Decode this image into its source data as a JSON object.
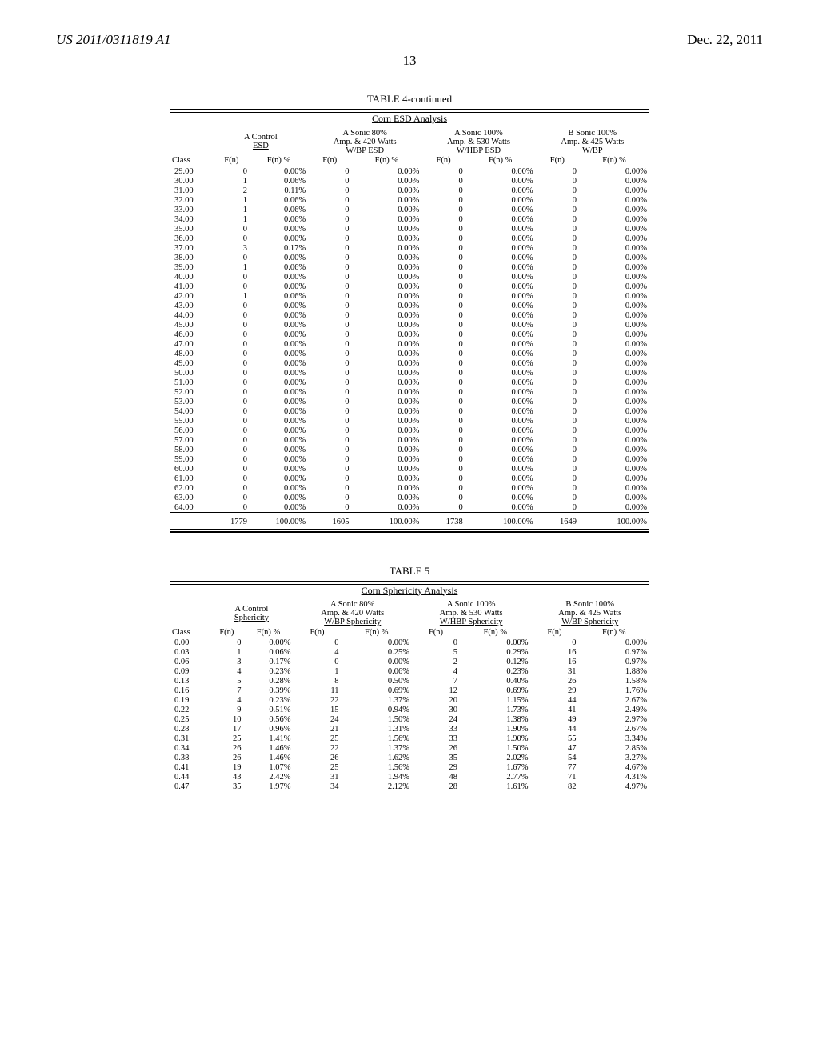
{
  "header": {
    "patent_number": "US 2011/0311819 A1",
    "date": "Dec. 22, 2011",
    "page_number": "13"
  },
  "table4": {
    "title": "TABLE 4-continued",
    "subtitle": "Corn ESD Analysis",
    "group_headers": [
      "A Control\nESD",
      "A Sonic 80%\nAmp. & 420 Watts\nW/BP ESD",
      "A Sonic 100%\nAmp. & 530 Watts\nW/HBP ESD",
      "B Sonic 100%\nAmp. & 425 Watts\nW/BP"
    ],
    "col_labels": [
      "Class",
      "F(n)",
      "F(n) %",
      "F(n)",
      "F(n) %",
      "F(n)",
      "F(n) %",
      "F(n)",
      "F(n) %"
    ],
    "rows": [
      [
        "29.00",
        "0",
        "0.00%",
        "0",
        "0.00%",
        "0",
        "0.00%",
        "0",
        "0.00%"
      ],
      [
        "30.00",
        "1",
        "0.06%",
        "0",
        "0.00%",
        "0",
        "0.00%",
        "0",
        "0.00%"
      ],
      [
        "31.00",
        "2",
        "0.11%",
        "0",
        "0.00%",
        "0",
        "0.00%",
        "0",
        "0.00%"
      ],
      [
        "32.00",
        "1",
        "0.06%",
        "0",
        "0.00%",
        "0",
        "0.00%",
        "0",
        "0.00%"
      ],
      [
        "33.00",
        "1",
        "0.06%",
        "0",
        "0.00%",
        "0",
        "0.00%",
        "0",
        "0.00%"
      ],
      [
        "34.00",
        "1",
        "0.06%",
        "0",
        "0.00%",
        "0",
        "0.00%",
        "0",
        "0.00%"
      ],
      [
        "35.00",
        "0",
        "0.00%",
        "0",
        "0.00%",
        "0",
        "0.00%",
        "0",
        "0.00%"
      ],
      [
        "36.00",
        "0",
        "0.00%",
        "0",
        "0.00%",
        "0",
        "0.00%",
        "0",
        "0.00%"
      ],
      [
        "37.00",
        "3",
        "0.17%",
        "0",
        "0.00%",
        "0",
        "0.00%",
        "0",
        "0.00%"
      ],
      [
        "38.00",
        "0",
        "0.00%",
        "0",
        "0.00%",
        "0",
        "0.00%",
        "0",
        "0.00%"
      ],
      [
        "39.00",
        "1",
        "0.06%",
        "0",
        "0.00%",
        "0",
        "0.00%",
        "0",
        "0.00%"
      ],
      [
        "40.00",
        "0",
        "0.00%",
        "0",
        "0.00%",
        "0",
        "0.00%",
        "0",
        "0.00%"
      ],
      [
        "41.00",
        "0",
        "0.00%",
        "0",
        "0.00%",
        "0",
        "0.00%",
        "0",
        "0.00%"
      ],
      [
        "42.00",
        "1",
        "0.06%",
        "0",
        "0.00%",
        "0",
        "0.00%",
        "0",
        "0.00%"
      ],
      [
        "43.00",
        "0",
        "0.00%",
        "0",
        "0.00%",
        "0",
        "0.00%",
        "0",
        "0.00%"
      ],
      [
        "44.00",
        "0",
        "0.00%",
        "0",
        "0.00%",
        "0",
        "0.00%",
        "0",
        "0.00%"
      ],
      [
        "45.00",
        "0",
        "0.00%",
        "0",
        "0.00%",
        "0",
        "0.00%",
        "0",
        "0.00%"
      ],
      [
        "46.00",
        "0",
        "0.00%",
        "0",
        "0.00%",
        "0",
        "0.00%",
        "0",
        "0.00%"
      ],
      [
        "47.00",
        "0",
        "0.00%",
        "0",
        "0.00%",
        "0",
        "0.00%",
        "0",
        "0.00%"
      ],
      [
        "48.00",
        "0",
        "0.00%",
        "0",
        "0.00%",
        "0",
        "0.00%",
        "0",
        "0.00%"
      ],
      [
        "49.00",
        "0",
        "0.00%",
        "0",
        "0.00%",
        "0",
        "0.00%",
        "0",
        "0.00%"
      ],
      [
        "50.00",
        "0",
        "0.00%",
        "0",
        "0.00%",
        "0",
        "0.00%",
        "0",
        "0.00%"
      ],
      [
        "51.00",
        "0",
        "0.00%",
        "0",
        "0.00%",
        "0",
        "0.00%",
        "0",
        "0.00%"
      ],
      [
        "52.00",
        "0",
        "0.00%",
        "0",
        "0.00%",
        "0",
        "0.00%",
        "0",
        "0.00%"
      ],
      [
        "53.00",
        "0",
        "0.00%",
        "0",
        "0.00%",
        "0",
        "0.00%",
        "0",
        "0.00%"
      ],
      [
        "54.00",
        "0",
        "0.00%",
        "0",
        "0.00%",
        "0",
        "0.00%",
        "0",
        "0.00%"
      ],
      [
        "55.00",
        "0",
        "0.00%",
        "0",
        "0.00%",
        "0",
        "0.00%",
        "0",
        "0.00%"
      ],
      [
        "56.00",
        "0",
        "0.00%",
        "0",
        "0.00%",
        "0",
        "0.00%",
        "0",
        "0.00%"
      ],
      [
        "57.00",
        "0",
        "0.00%",
        "0",
        "0.00%",
        "0",
        "0.00%",
        "0",
        "0.00%"
      ],
      [
        "58.00",
        "0",
        "0.00%",
        "0",
        "0.00%",
        "0",
        "0.00%",
        "0",
        "0.00%"
      ],
      [
        "59.00",
        "0",
        "0.00%",
        "0",
        "0.00%",
        "0",
        "0.00%",
        "0",
        "0.00%"
      ],
      [
        "60.00",
        "0",
        "0.00%",
        "0",
        "0.00%",
        "0",
        "0.00%",
        "0",
        "0.00%"
      ],
      [
        "61.00",
        "0",
        "0.00%",
        "0",
        "0.00%",
        "0",
        "0.00%",
        "0",
        "0.00%"
      ],
      [
        "62.00",
        "0",
        "0.00%",
        "0",
        "0.00%",
        "0",
        "0.00%",
        "0",
        "0.00%"
      ],
      [
        "63.00",
        "0",
        "0.00%",
        "0",
        "0.00%",
        "0",
        "0.00%",
        "0",
        "0.00%"
      ],
      [
        "64.00",
        "0",
        "0.00%",
        "0",
        "0.00%",
        "0",
        "0.00%",
        "0",
        "0.00%"
      ]
    ],
    "totals": [
      "",
      "1779",
      "100.00%",
      "1605",
      "100.00%",
      "1738",
      "100.00%",
      "1649",
      "100.00%"
    ]
  },
  "table5": {
    "title": "TABLE 5",
    "subtitle": "Corn Sphericity Analysis",
    "group_headers": [
      "A Control\nSphericity",
      "A Sonic 80%\nAmp. & 420 Watts\nW/BP Sphericity",
      "A Sonic 100%\nAmp. & 530 Watts\nW/HBP Sphericity",
      "B Sonic 100%\nAmp. & 425 Watts\nW/BP Sphericity"
    ],
    "col_labels": [
      "Class",
      "F(n)",
      "F(n) %",
      "F(n)",
      "F(n) %",
      "F(n)",
      "F(n) %",
      "F(n)",
      "F(n) %"
    ],
    "rows": [
      [
        "0.00",
        "0",
        "0.00%",
        "0",
        "0.00%",
        "0",
        "0.00%",
        "0",
        "0.00%"
      ],
      [
        "0.03",
        "1",
        "0.06%",
        "4",
        "0.25%",
        "5",
        "0.29%",
        "16",
        "0.97%"
      ],
      [
        "0.06",
        "3",
        "0.17%",
        "0",
        "0.00%",
        "2",
        "0.12%",
        "16",
        "0.97%"
      ],
      [
        "0.09",
        "4",
        "0.23%",
        "1",
        "0.06%",
        "4",
        "0.23%",
        "31",
        "1.88%"
      ],
      [
        "0.13",
        "5",
        "0.28%",
        "8",
        "0.50%",
        "7",
        "0.40%",
        "26",
        "1.58%"
      ],
      [
        "0.16",
        "7",
        "0.39%",
        "11",
        "0.69%",
        "12",
        "0.69%",
        "29",
        "1.76%"
      ],
      [
        "0.19",
        "4",
        "0.23%",
        "22",
        "1.37%",
        "20",
        "1.15%",
        "44",
        "2.67%"
      ],
      [
        "0.22",
        "9",
        "0.51%",
        "15",
        "0.94%",
        "30",
        "1.73%",
        "41",
        "2.49%"
      ],
      [
        "0.25",
        "10",
        "0.56%",
        "24",
        "1.50%",
        "24",
        "1.38%",
        "49",
        "2.97%"
      ],
      [
        "0.28",
        "17",
        "0.96%",
        "21",
        "1.31%",
        "33",
        "1.90%",
        "44",
        "2.67%"
      ],
      [
        "0.31",
        "25",
        "1.41%",
        "25",
        "1.56%",
        "33",
        "1.90%",
        "55",
        "3.34%"
      ],
      [
        "0.34",
        "26",
        "1.46%",
        "22",
        "1.37%",
        "26",
        "1.50%",
        "47",
        "2.85%"
      ],
      [
        "0.38",
        "26",
        "1.46%",
        "26",
        "1.62%",
        "35",
        "2.02%",
        "54",
        "3.27%"
      ],
      [
        "0.41",
        "19",
        "1.07%",
        "25",
        "1.56%",
        "29",
        "1.67%",
        "77",
        "4.67%"
      ],
      [
        "0.44",
        "43",
        "2.42%",
        "31",
        "1.94%",
        "48",
        "2.77%",
        "71",
        "4.31%"
      ],
      [
        "0.47",
        "35",
        "1.97%",
        "34",
        "2.12%",
        "28",
        "1.61%",
        "82",
        "4.97%"
      ]
    ]
  }
}
